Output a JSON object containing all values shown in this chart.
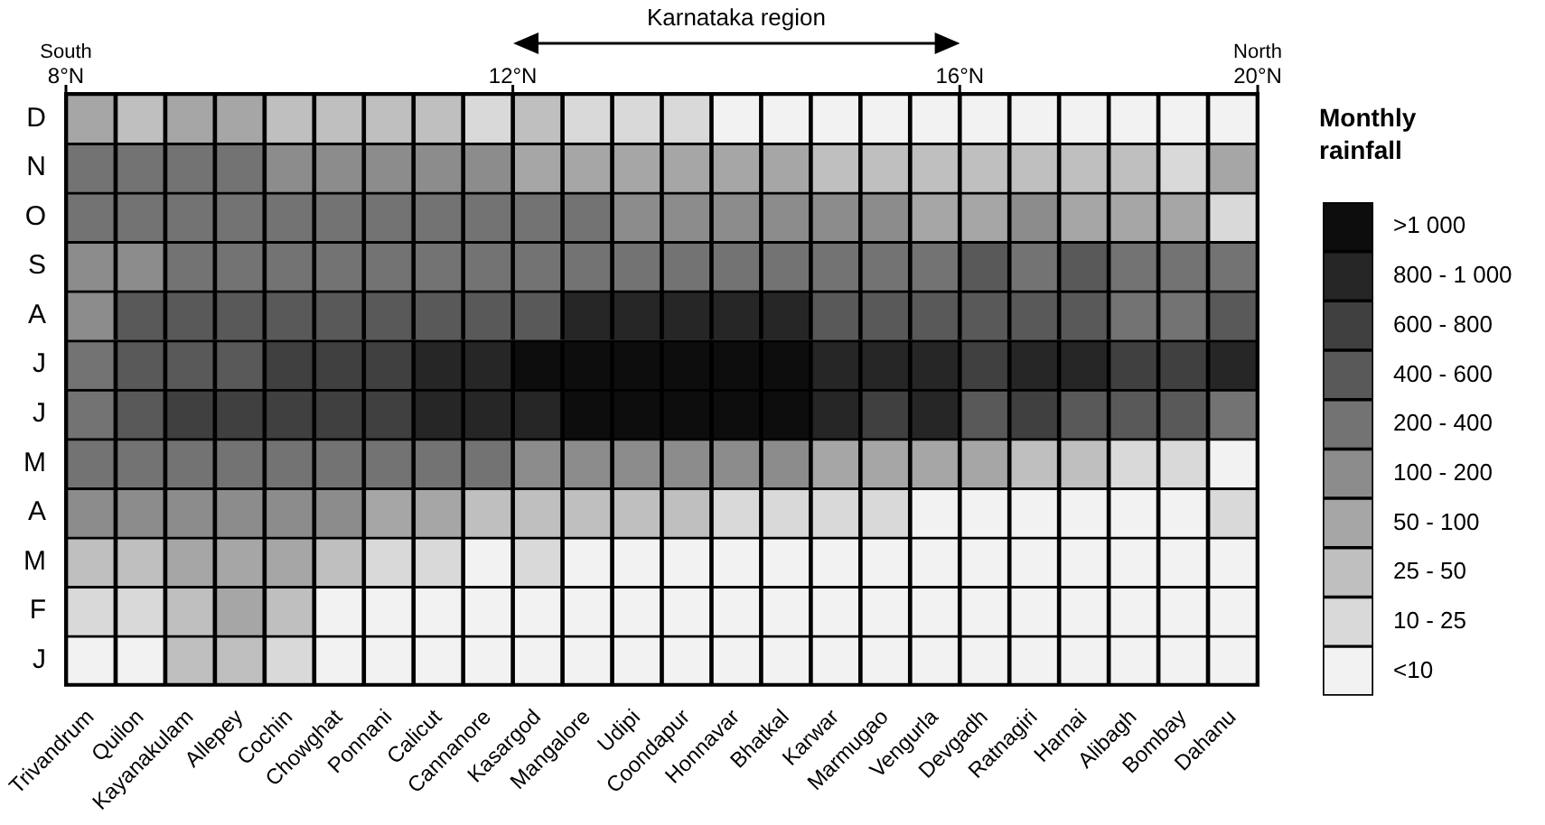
{
  "chart_data": {
    "type": "heatmap",
    "clabel": "Monthly rainfall",
    "categories": [
      "Trivandrum",
      "Quilon",
      "Kayanakulam",
      "Allepey",
      "Cochin",
      "Chowghat",
      "Ponnani",
      "Calicut",
      "Cannanore",
      "Kasargod",
      "Mangalore",
      "Udipi",
      "Coondapur",
      "Honnavar",
      "Bhatkal",
      "Karwar",
      "Marmugao",
      "Vengurla",
      "Devgadh",
      "Ratnagiri",
      "Harnai",
      "Alibagh",
      "Bombay",
      "Dahanu"
    ],
    "y_categories": [
      "D",
      "N",
      "O",
      "S",
      "A",
      "J",
      "J",
      "M",
      "A",
      "M",
      "F",
      "J"
    ],
    "cells": [
      [
        3,
        2,
        3,
        3,
        2,
        2,
        2,
        2,
        1,
        2,
        1,
        1,
        1,
        0,
        0,
        0,
        0,
        0,
        0,
        0,
        0,
        0,
        0,
        0
      ],
      [
        5,
        5,
        5,
        5,
        4,
        4,
        4,
        4,
        4,
        3,
        3,
        3,
        3,
        3,
        3,
        2,
        2,
        2,
        2,
        2,
        2,
        2,
        1,
        3
      ],
      [
        5,
        5,
        5,
        5,
        5,
        5,
        5,
        5,
        5,
        5,
        5,
        4,
        4,
        4,
        4,
        4,
        4,
        3,
        3,
        4,
        3,
        3,
        3,
        1
      ],
      [
        4,
        4,
        5,
        5,
        5,
        5,
        5,
        5,
        5,
        5,
        5,
        5,
        5,
        5,
        5,
        5,
        5,
        5,
        6,
        5,
        6,
        5,
        5,
        5
      ],
      [
        4,
        6,
        6,
        6,
        6,
        6,
        6,
        6,
        6,
        6,
        8,
        8,
        8,
        8,
        8,
        6,
        6,
        6,
        6,
        6,
        6,
        5,
        5,
        6
      ],
      [
        5,
        6,
        6,
        6,
        7,
        7,
        7,
        8,
        8,
        9,
        9,
        9,
        9,
        9,
        9,
        8,
        8,
        8,
        7,
        8,
        8,
        7,
        7,
        8
      ],
      [
        5,
        6,
        7,
        7,
        7,
        7,
        7,
        8,
        8,
        8,
        9,
        9,
        9,
        9,
        9,
        8,
        7,
        8,
        6,
        7,
        6,
        6,
        6,
        5
      ],
      [
        5,
        5,
        5,
        5,
        5,
        5,
        5,
        5,
        5,
        4,
        4,
        4,
        4,
        4,
        4,
        3,
        3,
        3,
        3,
        2,
        2,
        1,
        1,
        0
      ],
      [
        4,
        4,
        4,
        4,
        4,
        4,
        3,
        3,
        2,
        2,
        2,
        2,
        2,
        1,
        1,
        1,
        1,
        0,
        0,
        0,
        0,
        0,
        0,
        1
      ],
      [
        2,
        2,
        3,
        3,
        3,
        2,
        1,
        1,
        0,
        1,
        0,
        0,
        0,
        0,
        0,
        0,
        0,
        0,
        0,
        0,
        0,
        0,
        0,
        0
      ],
      [
        1,
        1,
        2,
        3,
        2,
        0,
        0,
        0,
        0,
        0,
        0,
        0,
        0,
        0,
        0,
        0,
        0,
        0,
        0,
        0,
        0,
        0,
        0,
        0
      ],
      [
        0,
        0,
        2,
        2,
        1,
        0,
        0,
        0,
        0,
        0,
        0,
        0,
        0,
        0,
        0,
        0,
        0,
        0,
        0,
        0,
        0,
        0,
        0,
        0
      ]
    ],
    "clim": [
      -0.5,
      9.5
    ],
    "cticks": [
      {
        "value": 0,
        "label": "<10"
      },
      {
        "value": 1,
        "label": "10 - 25"
      },
      {
        "value": 2,
        "label": "25 - 50"
      },
      {
        "value": 3,
        "label": "50 - 100"
      },
      {
        "value": 4,
        "label": "100 - 200"
      },
      {
        "value": 5,
        "label": "200 - 400"
      },
      {
        "value": 6,
        "label": "400 - 600"
      },
      {
        "value": 7,
        "label": "600 - 800"
      },
      {
        "value": 8,
        "label": "800 - 1 000"
      },
      {
        "value": 9,
        "label": ">1 000"
      }
    ],
    "annotations": [
      "South",
      "North",
      "8°N",
      "12°N",
      "16°N",
      "20°N",
      "Karnataka region"
    ]
  }
}
